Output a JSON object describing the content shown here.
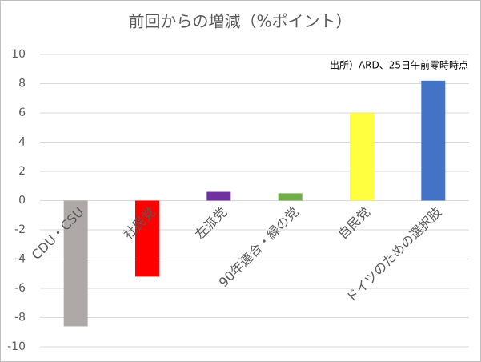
{
  "chart_data": {
    "type": "bar",
    "title": "前回からの増減（%ポイント）",
    "annotation": "出所）ARD、25日午前零時時点",
    "categories": [
      "CDU・CSU",
      "社民党",
      "左派党",
      "90年連合・緑の党",
      "自民党",
      "ドイツのための選択肢"
    ],
    "values": [
      -8.6,
      -5.2,
      0.6,
      0.5,
      6.0,
      8.2
    ],
    "colors": [
      "#aea9a6",
      "#ff0000",
      "#7030a0",
      "#70ad47",
      "#ffff40",
      "#4472c4"
    ],
    "ylim": [
      -10,
      10
    ],
    "yticks": [
      -10,
      -8,
      -6,
      -4,
      -2,
      0,
      2,
      4,
      6,
      8,
      10
    ],
    "grid": true
  }
}
